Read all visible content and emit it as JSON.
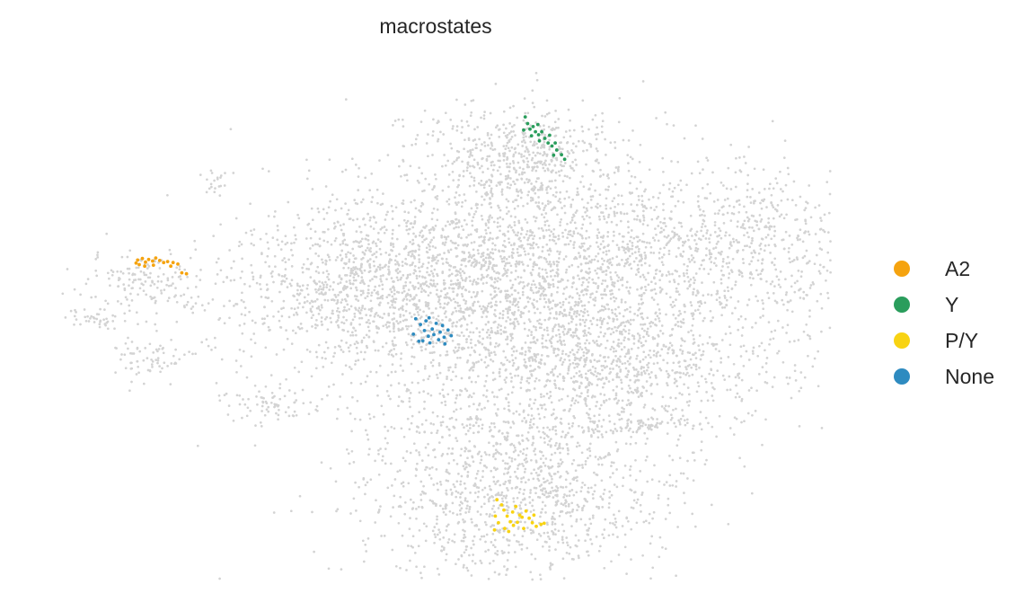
{
  "chart_data": {
    "type": "scatter",
    "title": "macrostates",
    "xlabel": "",
    "ylabel": "",
    "axes": "off",
    "grid": false,
    "legend_position": "right",
    "xlim": [
      0,
      100
    ],
    "ylim": [
      0,
      100
    ],
    "background_color": "#d3d3d3",
    "background_clusters": [
      {
        "name": "main-central-cluster",
        "x": 62,
        "y": 58,
        "sx": 15,
        "sy": 13,
        "n": 2800
      },
      {
        "name": "main-right-extension",
        "x": 89,
        "y": 66,
        "sx": 8,
        "sy": 7,
        "n": 500
      },
      {
        "name": "top-cap-cluster",
        "x": 61,
        "y": 83,
        "sx": 6,
        "sy": 5,
        "n": 450
      },
      {
        "name": "left-lobe-cluster",
        "x": 42,
        "y": 57,
        "sx": 11,
        "sy": 8,
        "n": 900
      },
      {
        "name": "lower-right-lobe",
        "x": 74,
        "y": 42,
        "sx": 10,
        "sy": 6,
        "n": 600
      },
      {
        "name": "bottom-cluster",
        "x": 60,
        "y": 18,
        "sx": 10,
        "sy": 10,
        "n": 1300
      },
      {
        "name": "far-left-cluster-upper",
        "x": 13,
        "y": 58,
        "sx": 4,
        "sy": 2.5,
        "n": 140
      },
      {
        "name": "far-left-cluster-mid",
        "x": 7,
        "y": 51,
        "sx": 2,
        "sy": 1,
        "n": 40
      },
      {
        "name": "far-left-cluster-low",
        "x": 14,
        "y": 43,
        "sx": 3,
        "sy": 2,
        "n": 70
      },
      {
        "name": "small-left-island",
        "x": 29,
        "y": 34,
        "sx": 3,
        "sy": 1.8,
        "n": 70
      },
      {
        "name": "right-strip",
        "x": 76,
        "y": 30,
        "sx": 4.5,
        "sy": 0.8,
        "n": 70
      },
      {
        "name": "tiny-top-left",
        "x": 22,
        "y": 78,
        "sx": 0.8,
        "sy": 1.5,
        "n": 20
      }
    ],
    "series": [
      {
        "name": "A2",
        "color": "#f5a30f",
        "points": [
          [
            12.0,
            62.5
          ],
          [
            12.6,
            62.8
          ],
          [
            13.0,
            62.1
          ],
          [
            13.4,
            62.6
          ],
          [
            13.9,
            62.3
          ],
          [
            14.3,
            62.9
          ],
          [
            14.8,
            62.4
          ],
          [
            15.3,
            62.0
          ],
          [
            15.8,
            62.2
          ],
          [
            16.5,
            62.0
          ],
          [
            17.1,
            61.7
          ],
          [
            12.2,
            61.6
          ],
          [
            12.9,
            61.3
          ],
          [
            11.8,
            61.9
          ],
          [
            14.0,
            61.5
          ],
          [
            16.2,
            61.3
          ],
          [
            17.6,
            60.0
          ],
          [
            18.2,
            59.8
          ]
        ]
      },
      {
        "name": "Y",
        "color": "#2a9d5c",
        "points": [
          [
            61.2,
            90.5
          ],
          [
            61.5,
            89.2
          ],
          [
            61.8,
            88.1
          ],
          [
            62.2,
            88.6
          ],
          [
            62.5,
            87.6
          ],
          [
            62.9,
            87.0
          ],
          [
            63.3,
            87.6
          ],
          [
            63.7,
            86.3
          ],
          [
            64.1,
            85.4
          ],
          [
            64.6,
            84.8
          ],
          [
            65.2,
            84.0
          ],
          [
            65.8,
            83.1
          ],
          [
            66.2,
            82.2
          ],
          [
            61.0,
            87.9
          ],
          [
            62.0,
            86.8
          ],
          [
            63.0,
            85.8
          ],
          [
            64.3,
            86.9
          ],
          [
            65.0,
            85.4
          ],
          [
            62.8,
            89.0
          ],
          [
            64.8,
            83.0
          ]
        ]
      },
      {
        "name": "P/Y",
        "color": "#f8d313",
        "points": [
          [
            57.6,
            15.6
          ],
          [
            58.2,
            14.6
          ],
          [
            58.5,
            13.6
          ],
          [
            58.9,
            12.4
          ],
          [
            59.3,
            11.3
          ],
          [
            59.7,
            10.6
          ],
          [
            60.2,
            11.2
          ],
          [
            60.8,
            12.2
          ],
          [
            61.3,
            13.4
          ],
          [
            61.7,
            12.0
          ],
          [
            62.1,
            11.1
          ],
          [
            62.6,
            10.4
          ],
          [
            63.2,
            10.8
          ],
          [
            57.4,
            12.4
          ],
          [
            57.8,
            11.1
          ],
          [
            58.6,
            10.0
          ],
          [
            59.1,
            9.4
          ],
          [
            60.0,
            14.3
          ],
          [
            61.0,
            10.0
          ],
          [
            57.3,
            9.7
          ],
          [
            62.3,
            12.6
          ],
          [
            63.6,
            11.0
          ],
          [
            59.6,
            13.2
          ],
          [
            60.5,
            12.6
          ]
        ]
      },
      {
        "name": "None",
        "color": "#2e8bc0",
        "points": [
          [
            47.3,
            51.0
          ],
          [
            47.9,
            49.9
          ],
          [
            48.4,
            48.7
          ],
          [
            48.9,
            47.6
          ],
          [
            49.4,
            49.0
          ],
          [
            49.9,
            50.1
          ],
          [
            50.4,
            48.4
          ],
          [
            50.9,
            47.4
          ],
          [
            51.4,
            48.8
          ],
          [
            48.2,
            46.7
          ],
          [
            49.1,
            46.3
          ],
          [
            50.2,
            46.9
          ],
          [
            51.8,
            47.7
          ],
          [
            47.0,
            48.0
          ],
          [
            49.6,
            47.9
          ],
          [
            48.6,
            50.6
          ],
          [
            50.7,
            49.7
          ],
          [
            49.0,
            51.2
          ],
          [
            51.0,
            46.1
          ],
          [
            47.7,
            46.6
          ]
        ]
      }
    ]
  }
}
